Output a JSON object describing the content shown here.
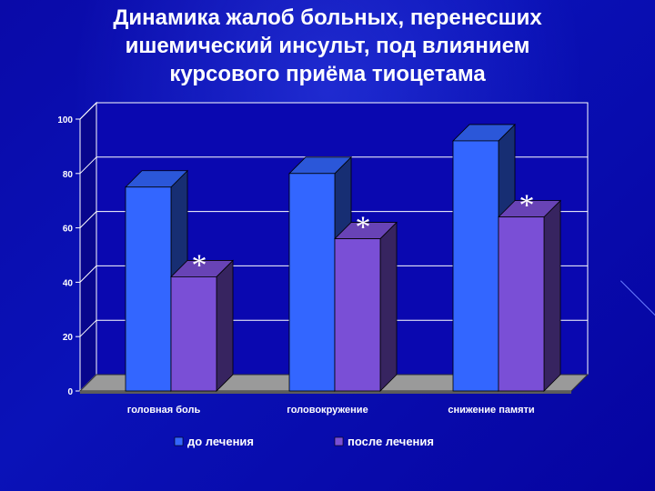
{
  "title_lines": [
    "Динамика жалоб больных, перенесших",
    "ишемический инсульт, под влиянием",
    "курсового приёма тиоцетама"
  ],
  "colors": {
    "series_before": "#3366ff",
    "series_after": "#7a4fd6",
    "wall": "#0a08b0",
    "floor": "#9a9a9a",
    "text": "#ffffff"
  },
  "chart_data": {
    "type": "bar",
    "categories": [
      "головная боль",
      "головокружение",
      "снижение памяти"
    ],
    "series": [
      {
        "name": "до лечения",
        "values": [
          75,
          80,
          92
        ]
      },
      {
        "name": "после лечения",
        "values": [
          42,
          56,
          64
        ]
      }
    ],
    "annotations": [
      "*",
      "*",
      "*"
    ],
    "y_ticks": [
      "0",
      "20",
      "40",
      "60",
      "80",
      "100"
    ],
    "ylim": [
      0,
      100
    ],
    "grid": true,
    "legend_position": "bottom"
  }
}
